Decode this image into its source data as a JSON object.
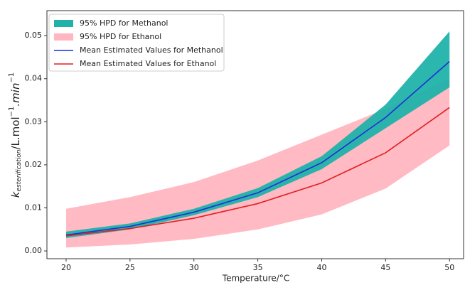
{
  "chart_data": {
    "type": "band-line",
    "xlabel": "Temperature/°C",
    "ylabel_parts": [
      "k",
      "esterification",
      "/L.mol",
      "−1",
      ".min",
      "−1"
    ],
    "x": [
      20,
      25,
      30,
      35,
      40,
      45,
      50
    ],
    "xlim": [
      18.5,
      51.1
    ],
    "ylim": [
      -0.0018,
      0.0558
    ],
    "xticks": [
      20,
      25,
      30,
      35,
      40,
      45,
      50
    ],
    "yticks": [
      {
        "value": 0,
        "label": "0.00"
      },
      {
        "value": 0.01,
        "label": "0.01"
      },
      {
        "value": 0.02,
        "label": "0.02"
      },
      {
        "value": 0.03,
        "label": "0.03"
      },
      {
        "value": 0.04,
        "label": "0.04"
      },
      {
        "value": 0.05,
        "label": "0.05"
      }
    ],
    "legend": "upper left",
    "series": [
      {
        "name": "95% HPD for Ethanol",
        "kind": "band",
        "color": "#ffb6c1",
        "lower": [
          0.0008,
          0.0015,
          0.0028,
          0.005,
          0.0085,
          0.0145,
          0.0245
        ],
        "upper": [
          0.0098,
          0.0125,
          0.016,
          0.021,
          0.027,
          0.033,
          0.04
        ]
      },
      {
        "name": "95% HPD for Methanol",
        "kind": "band",
        "color": "#20b2aa",
        "lower": [
          0.003,
          0.005,
          0.0083,
          0.0125,
          0.019,
          0.0285,
          0.038
        ],
        "upper": [
          0.0045,
          0.0064,
          0.0098,
          0.0146,
          0.022,
          0.034,
          0.051
        ]
      },
      {
        "name": "Mean Estimated Values for Methanol",
        "kind": "line",
        "color": "#1f2fd6",
        "values": [
          0.0037,
          0.0057,
          0.009,
          0.0135,
          0.0205,
          0.031,
          0.044
        ]
      },
      {
        "name": "Mean Estimated Values for Ethanol",
        "kind": "line",
        "color": "#e02020",
        "values": [
          0.0035,
          0.0052,
          0.0076,
          0.011,
          0.0158,
          0.0228,
          0.0333
        ]
      }
    ],
    "legend_order": [
      1,
      0,
      2,
      3
    ]
  }
}
